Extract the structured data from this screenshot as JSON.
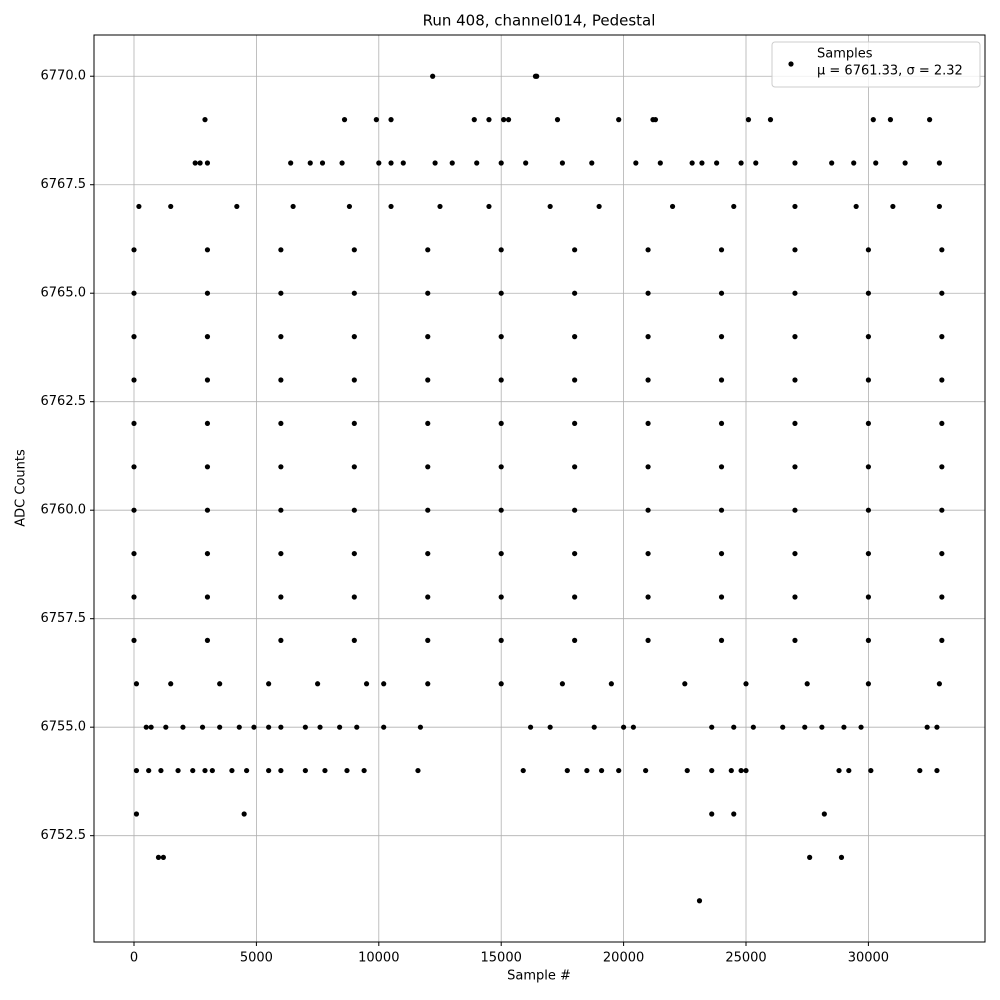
{
  "chart_data": {
    "type": "scatter",
    "title": "Run 408, channel014, Pedestal",
    "x_label": "Sample #",
    "y_label": "ADC Counts",
    "legend_note": "μ = 6761.33, σ = 2.32",
    "legend_position": "upper right",
    "grid": true,
    "xlim": [
      -1634,
      34763
    ],
    "xticks": [
      0,
      5000,
      10000,
      15000,
      20000,
      25000,
      30000
    ],
    "ylim": [
      6750.05,
      6770.95
    ],
    "yticks": [
      6752.5,
      {
        "value": 6755,
        "label": "6755.0"
      },
      6757.5,
      {
        "value": 6760,
        "label": "6760.0"
      },
      6762.5,
      {
        "value": 6765,
        "label": "6765.0"
      },
      6767.5,
      {
        "value": 6770,
        "label": "6770.0"
      }
    ],
    "series": [
      {
        "name": "Samples",
        "color": "#000000",
        "x": [
          12200,
          16400,
          16450,
          2900,
          8600,
          9900,
          10500,
          13900,
          14500,
          15100,
          15300,
          17300,
          19800,
          21200,
          21300,
          25100,
          26000,
          30200,
          30900,
          32500,
          2500,
          2700,
          3000,
          6400,
          7200,
          7700,
          8500,
          10000,
          10500,
          11000,
          12300,
          13000,
          14000,
          15000,
          16000,
          17500,
          18700,
          20500,
          21500,
          22800,
          23200,
          23800,
          24800,
          25400,
          27000,
          28500,
          29400,
          30300,
          31500,
          32900,
          200,
          1500,
          4200,
          6500,
          8800,
          10500,
          12500,
          14500,
          17000,
          19000,
          22000,
          24500,
          27000,
          29500,
          31000,
          32900,
          0,
          3000,
          6000,
          9000,
          12000,
          15000,
          18000,
          21000,
          24000,
          27000,
          30000,
          33000,
          0,
          3000,
          6000,
          9000,
          12000,
          15000,
          18000,
          21000,
          24000,
          27000,
          30000,
          33000,
          0,
          3000,
          6000,
          9000,
          12000,
          15000,
          18000,
          21000,
          24000,
          27000,
          30000,
          33000,
          0,
          3000,
          6000,
          9000,
          12000,
          15000,
          18000,
          21000,
          24000,
          27000,
          30000,
          33000,
          0,
          3000,
          6000,
          9000,
          12000,
          15000,
          18000,
          21000,
          24000,
          27000,
          30000,
          33000,
          0,
          3000,
          6000,
          9000,
          12000,
          15000,
          18000,
          21000,
          24000,
          27000,
          30000,
          33000,
          0,
          3000,
          6000,
          9000,
          12000,
          15000,
          18000,
          21000,
          24000,
          27000,
          30000,
          33000,
          0,
          3000,
          6000,
          9000,
          12000,
          15000,
          18000,
          21000,
          24000,
          27000,
          30000,
          33000,
          0,
          3000,
          6000,
          9000,
          12000,
          15000,
          18000,
          21000,
          24000,
          27000,
          30000,
          33000,
          0,
          3000,
          6000,
          9000,
          12000,
          15000,
          18000,
          21000,
          24000,
          27000,
          30000,
          33000,
          100,
          1500,
          3500,
          5500,
          7500,
          9500,
          10200,
          12000,
          15000,
          17500,
          19500,
          22500,
          25000,
          27500,
          30000,
          32900,
          500,
          700,
          1300,
          2000,
          2800,
          3500,
          4300,
          4900,
          5500,
          6000,
          7000,
          7600,
          8400,
          9100,
          10200,
          11700,
          16200,
          17000,
          18800,
          20000,
          20400,
          23600,
          24500,
          25300,
          26500,
          27400,
          28100,
          29000,
          29700,
          32400,
          32800,
          100,
          600,
          1100,
          1800,
          2400,
          2900,
          3200,
          4000,
          4600,
          5500,
          6000,
          7000,
          7800,
          8700,
          9400,
          11600,
          15900,
          17700,
          18500,
          19100,
          19800,
          20900,
          22600,
          23600,
          24400,
          24800,
          25000,
          28800,
          29200,
          30100,
          32100,
          32800,
          100,
          4500,
          23600,
          24500,
          28200,
          1000,
          1200,
          27600,
          28900,
          23100
        ],
        "y": [
          6770,
          6770,
          6770,
          6769,
          6769,
          6769,
          6769,
          6769,
          6769,
          6769,
          6769,
          6769,
          6769,
          6769,
          6769,
          6769,
          6769,
          6769,
          6769,
          6769,
          6768,
          6768,
          6768,
          6768,
          6768,
          6768,
          6768,
          6768,
          6768,
          6768,
          6768,
          6768,
          6768,
          6768,
          6768,
          6768,
          6768,
          6768,
          6768,
          6768,
          6768,
          6768,
          6768,
          6768,
          6768,
          6768,
          6768,
          6768,
          6768,
          6768,
          6767,
          6767,
          6767,
          6767,
          6767,
          6767,
          6767,
          6767,
          6767,
          6767,
          6767,
          6767,
          6767,
          6767,
          6767,
          6767,
          6766,
          6766,
          6766,
          6766,
          6766,
          6766,
          6766,
          6766,
          6766,
          6766,
          6766,
          6766,
          6765,
          6765,
          6765,
          6765,
          6765,
          6765,
          6765,
          6765,
          6765,
          6765,
          6765,
          6765,
          6764,
          6764,
          6764,
          6764,
          6764,
          6764,
          6764,
          6764,
          6764,
          6764,
          6764,
          6764,
          6763,
          6763,
          6763,
          6763,
          6763,
          6763,
          6763,
          6763,
          6763,
          6763,
          6763,
          6763,
          6762,
          6762,
          6762,
          6762,
          6762,
          6762,
          6762,
          6762,
          6762,
          6762,
          6762,
          6762,
          6761,
          6761,
          6761,
          6761,
          6761,
          6761,
          6761,
          6761,
          6761,
          6761,
          6761,
          6761,
          6760,
          6760,
          6760,
          6760,
          6760,
          6760,
          6760,
          6760,
          6760,
          6760,
          6760,
          6760,
          6759,
          6759,
          6759,
          6759,
          6759,
          6759,
          6759,
          6759,
          6759,
          6759,
          6759,
          6759,
          6758,
          6758,
          6758,
          6758,
          6758,
          6758,
          6758,
          6758,
          6758,
          6758,
          6758,
          6758,
          6757,
          6757,
          6757,
          6757,
          6757,
          6757,
          6757,
          6757,
          6757,
          6757,
          6757,
          6757,
          6756,
          6756,
          6756,
          6756,
          6756,
          6756,
          6756,
          6756,
          6756,
          6756,
          6756,
          6756,
          6756,
          6756,
          6756,
          6756,
          6755,
          6755,
          6755,
          6755,
          6755,
          6755,
          6755,
          6755,
          6755,
          6755,
          6755,
          6755,
          6755,
          6755,
          6755,
          6755,
          6755,
          6755,
          6755,
          6755,
          6755,
          6755,
          6755,
          6755,
          6755,
          6755,
          6755,
          6755,
          6755,
          6755,
          6755,
          6754,
          6754,
          6754,
          6754,
          6754,
          6754,
          6754,
          6754,
          6754,
          6754,
          6754,
          6754,
          6754,
          6754,
          6754,
          6754,
          6754,
          6754,
          6754,
          6754,
          6754,
          6754,
          6754,
          6754,
          6754,
          6754,
          6754,
          6754,
          6754,
          6754,
          6754,
          6754,
          6753,
          6753,
          6753,
          6753,
          6753,
          6752,
          6752,
          6752,
          6752,
          6751
        ]
      }
    ]
  }
}
